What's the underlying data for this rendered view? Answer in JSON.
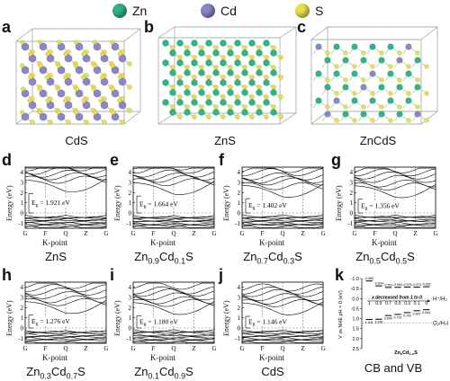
{
  "legend": [
    {
      "name": "Zn",
      "color": "#2fb38a"
    },
    {
      "name": "Cd",
      "color": "#8a86c8"
    },
    {
      "name": "S",
      "color": "#e8e04a"
    }
  ],
  "structures": [
    {
      "letter": "a",
      "caption": "CdS"
    },
    {
      "letter": "b",
      "caption": "ZnS"
    },
    {
      "letter": "c",
      "caption": "ZnCdS"
    }
  ],
  "band_panels": [
    {
      "letter": "d",
      "gap": "1.921 eV",
      "comp": [
        "ZnS"
      ]
    },
    {
      "letter": "e",
      "gap": "1.664 eV",
      "comp": [
        "Zn",
        "0.9",
        "Cd",
        "0.1",
        "S"
      ]
    },
    {
      "letter": "f",
      "gap": "1.402 eV",
      "comp": [
        "Zn",
        "0.7",
        "Cd",
        "0.3",
        "S"
      ]
    },
    {
      "letter": "g",
      "gap": "1.356 eV",
      "comp": [
        "Zn",
        "0.5",
        "Cd",
        "0.5",
        "S"
      ]
    },
    {
      "letter": "h",
      "gap": "1.276 eV",
      "comp": [
        "Zn",
        "0.3",
        "Cd",
        "0.7",
        "S"
      ]
    },
    {
      "letter": "i",
      "gap": "1.180 eV",
      "comp": [
        "Zn",
        "0.1",
        "Cd",
        "0.9",
        "S"
      ]
    },
    {
      "letter": "j",
      "gap": "1.146 eV",
      "comp": [
        "CdS"
      ]
    }
  ],
  "band_axis": {
    "ylabel": "Energy (eV)",
    "xlabel": "K-point",
    "kpoints": [
      "G",
      "F",
      "Q",
      "Z",
      "G"
    ],
    "yticks": [
      "4",
      "3",
      "2",
      "1",
      "0",
      "-1"
    ],
    "gap_prefix": "E",
    "gap_sub": "g",
    "gap_eq": " = "
  },
  "panel_k": {
    "letter": "k",
    "ylabel": "V vs NHE pH = 0 (eV)",
    "yticks": [
      "-1.0",
      "-0.5",
      "0.0",
      "0.5",
      "1.0",
      "1.5",
      "2.0",
      "2.5"
    ],
    "h_label": "H⁺/H₂",
    "o_label": "O₂/H₂O",
    "arrow_text": "x decreased from 1 to 0",
    "x_values": [
      "1",
      "0.9",
      "0.7",
      "0.5",
      "0.3",
      "0.1",
      "0"
    ],
    "cb_values": [
      "-0.880",
      "-0.634",
      "-0.557",
      "-0.564",
      "-0.576",
      "-0.573",
      "-0.592"
    ],
    "vb_values": [
      "1.041",
      "1.030",
      "0.845",
      "0.792",
      "0.700",
      "0.607",
      "0.554"
    ],
    "formula": [
      "Zn",
      "x",
      "Cd",
      "1-x",
      "S"
    ],
    "caption": "CB and VB"
  }
}
